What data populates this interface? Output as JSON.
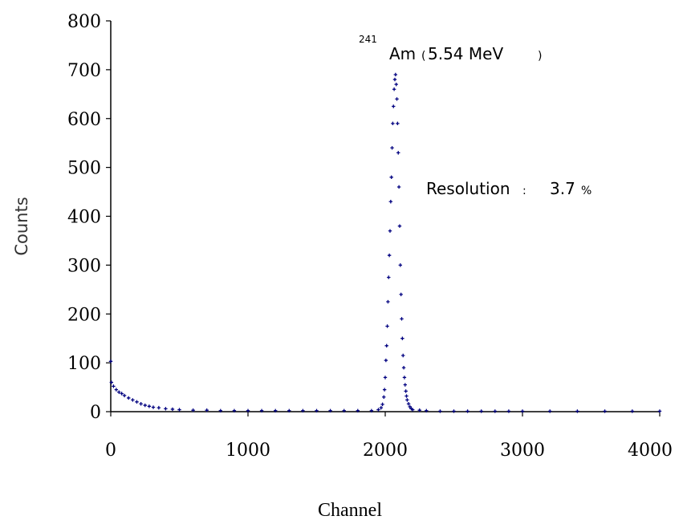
{
  "chart_data": {
    "type": "scatter",
    "xlabel": "Channel",
    "ylabel": "Counts",
    "xlim": [
      0,
      4000
    ],
    "ylim": [
      0,
      800
    ],
    "x_ticks": [
      "0",
      "1000",
      "2000",
      "3000",
      "4000"
    ],
    "y_ticks": [
      "0",
      "100",
      "200",
      "300",
      "400",
      "500",
      "600",
      "700",
      "800"
    ],
    "grid": false,
    "legend": "none",
    "marker_color": "#000080",
    "annotations": {
      "peak_isotope_mass": "241",
      "peak_isotope_symbol": "Am",
      "peak_energy_prefix": "(",
      "peak_energy_value": "5.54 MeV",
      "peak_energy_suffix": ")",
      "resolution_label": "Resolution",
      "resolution_colon": ":",
      "resolution_value": "3.7",
      "resolution_unit": "%"
    },
    "series": [
      {
        "points": [
          [
            0,
            103
          ],
          [
            5,
            60
          ],
          [
            20,
            52
          ],
          [
            40,
            45
          ],
          [
            60,
            40
          ],
          [
            80,
            37
          ],
          [
            100,
            33
          ],
          [
            130,
            28
          ],
          [
            160,
            24
          ],
          [
            190,
            20
          ],
          [
            220,
            16
          ],
          [
            250,
            13
          ],
          [
            280,
            11
          ],
          [
            310,
            9
          ],
          [
            350,
            8
          ],
          [
            400,
            6
          ],
          [
            450,
            5
          ],
          [
            500,
            4
          ],
          [
            600,
            3
          ],
          [
            700,
            3
          ],
          [
            800,
            2
          ],
          [
            900,
            2
          ],
          [
            1000,
            2
          ],
          [
            1100,
            2
          ],
          [
            1200,
            2
          ],
          [
            1300,
            2
          ],
          [
            1400,
            2
          ],
          [
            1500,
            2
          ],
          [
            1600,
            2
          ],
          [
            1700,
            2
          ],
          [
            1800,
            2
          ],
          [
            1900,
            2
          ],
          [
            1950,
            4
          ],
          [
            1970,
            8
          ],
          [
            1980,
            15
          ],
          [
            1990,
            30
          ],
          [
            1995,
            45
          ],
          [
            2000,
            70
          ],
          [
            2005,
            105
          ],
          [
            2010,
            135
          ],
          [
            2015,
            175
          ],
          [
            2020,
            225
          ],
          [
            2025,
            275
          ],
          [
            2030,
            320
          ],
          [
            2035,
            370
          ],
          [
            2040,
            430
          ],
          [
            2045,
            480
          ],
          [
            2050,
            540
          ],
          [
            2055,
            590
          ],
          [
            2060,
            625
          ],
          [
            2065,
            660
          ],
          [
            2070,
            680
          ],
          [
            2075,
            690
          ],
          [
            2080,
            670
          ],
          [
            2085,
            640
          ],
          [
            2090,
            590
          ],
          [
            2095,
            530
          ],
          [
            2100,
            460
          ],
          [
            2105,
            380
          ],
          [
            2110,
            300
          ],
          [
            2115,
            240
          ],
          [
            2120,
            190
          ],
          [
            2125,
            150
          ],
          [
            2130,
            115
          ],
          [
            2135,
            90
          ],
          [
            2140,
            70
          ],
          [
            2145,
            55
          ],
          [
            2150,
            42
          ],
          [
            2155,
            32
          ],
          [
            2160,
            24
          ],
          [
            2170,
            16
          ],
          [
            2180,
            10
          ],
          [
            2190,
            6
          ],
          [
            2200,
            4
          ],
          [
            2250,
            3
          ],
          [
            2300,
            2
          ],
          [
            2400,
            1
          ],
          [
            2500,
            1
          ],
          [
            2600,
            1
          ],
          [
            2700,
            1
          ],
          [
            2800,
            1
          ],
          [
            2900,
            1
          ],
          [
            3000,
            1
          ],
          [
            3200,
            1
          ],
          [
            3400,
            1
          ],
          [
            3600,
            1
          ],
          [
            3800,
            1
          ],
          [
            4000,
            1
          ]
        ]
      }
    ]
  }
}
